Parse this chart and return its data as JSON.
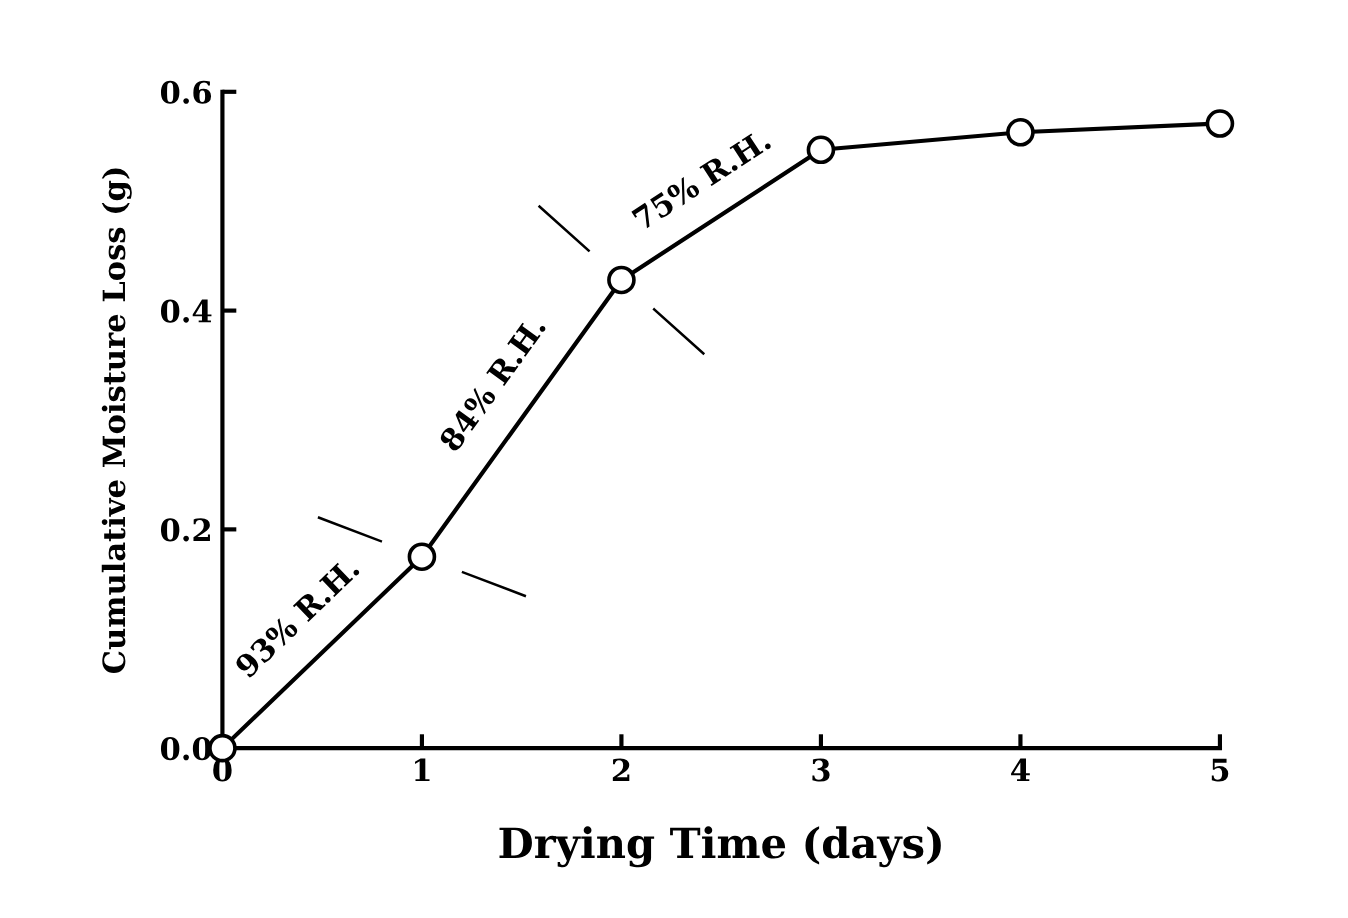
{
  "chart_data": {
    "type": "line",
    "xlabel": "Drying Time (days)",
    "ylabel": "Cumulative Moisture Loss (g)",
    "x": [
      0,
      1,
      2,
      3,
      4,
      5
    ],
    "series": [
      {
        "color": "#000000",
        "values": [
          0,
          0.175,
          0.428,
          0.547,
          0.563,
          0.571
        ]
      }
    ],
    "xlim": [
      0,
      5
    ],
    "ylim": [
      0,
      0.6
    ],
    "xticks": [
      0,
      1,
      2,
      3,
      4,
      5
    ],
    "yticks": [
      {
        "value": 0,
        "label": "0.0"
      },
      {
        "value": 0.2,
        "label": "0.2"
      },
      {
        "value": 0.4,
        "label": "0.4"
      },
      {
        "value": 0.6,
        "label": "0.6"
      }
    ],
    "annotations": [
      "93% R.H.",
      "84% R.H.",
      "75% R.H."
    ],
    "marker": "circle",
    "line_style": "solid",
    "grid": false,
    "legend": false
  }
}
